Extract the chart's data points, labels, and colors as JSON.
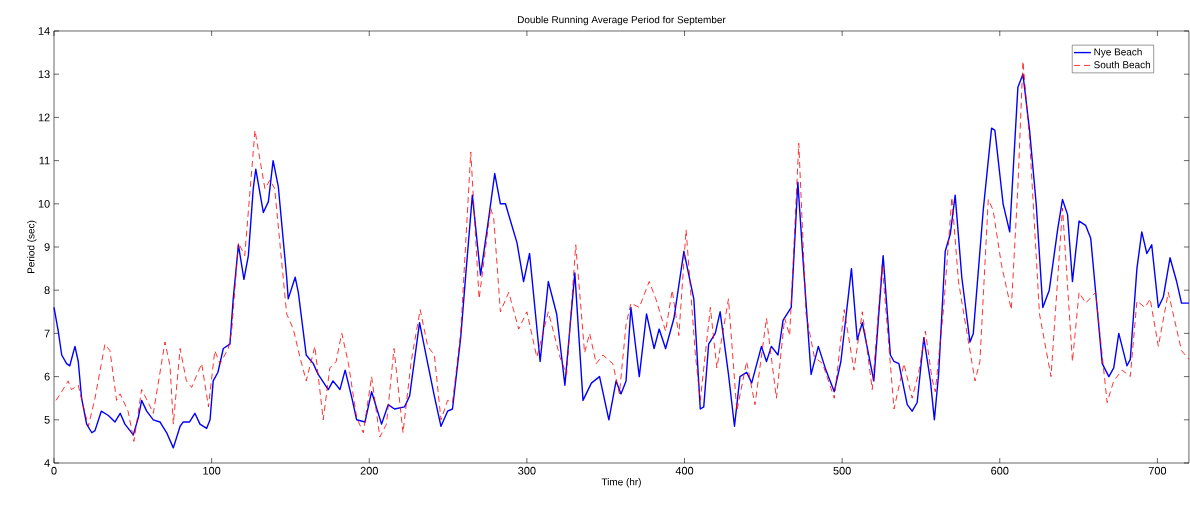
{
  "chart_data": {
    "type": "line",
    "title": "Double Running Average Period for September",
    "xlabel": "Time (hr)",
    "ylabel": "Period (sec)",
    "xlim": [
      0,
      720
    ],
    "ylim": [
      4,
      14
    ],
    "xticks": [
      0,
      100,
      200,
      300,
      400,
      500,
      600,
      700
    ],
    "yticks": [
      4,
      5,
      6,
      7,
      8,
      9,
      10,
      11,
      12,
      13,
      14
    ],
    "legend": "top right",
    "series": [
      {
        "name": "Nye Beach",
        "color": "#0000ff",
        "line_style": "solid",
        "x": [
          0,
          2.7,
          4.9,
          8,
          10,
          13.3,
          15.4,
          17.5,
          20.7,
          24,
          26,
          30,
          34.5,
          38.7,
          42,
          45,
          50.3,
          53.5,
          55.6,
          58.8,
          63,
          67.2,
          71.5,
          75.7,
          80,
          82,
          86,
          89.4,
          92.6,
          96.8,
          99,
          101,
          104,
          107.4,
          111.6,
          113.7,
          117,
          120.5,
          123.3,
          126.4,
          128,
          132.8,
          136,
          139,
          142.3,
          147.6,
          148.6,
          153,
          155,
          160,
          164.5,
          167.6,
          174,
          177,
          181.4,
          184.7,
          189,
          192,
          197.3,
          201.5,
          207.8,
          212,
          216,
          222.4,
          225.6,
          231.9,
          237.1,
          241.3,
          245.5,
          249.7,
          252.8,
          258,
          261.2,
          265.4,
          270.6,
          275.9,
          279.6,
          283.2,
          286.4,
          293.7,
          297.9,
          301.7,
          308.4,
          313.6,
          318.9,
          324.1,
          330.4,
          335.6,
          340.9,
          346.1,
          352,
          356.6,
          359.7,
          362.9,
          366,
          371.3,
          375.9,
          380.7,
          383.9,
          388,
          393.3,
          399.6,
          405.9,
          410,
          412.2,
          415.3,
          419.5,
          422.6,
          427.9,
          431.7,
          435.2,
          439.4,
          442.6,
          448.8,
          452,
          455.1,
          459.3,
          462.5,
          467.7,
          471.9,
          475,
          480.3,
          484.9,
          489.7,
          495,
          499.2,
          505.9,
          509.6,
          512.8,
          520.1,
          526,
          530.6,
          532.9,
          536,
          541.3,
          544.4,
          547.6,
          551.8,
          556,
          558.5,
          561.2,
          565.4,
          568.6,
          571.7,
          575.9,
          581.1,
          583.2,
          589.5,
          594.8,
          596.9,
          602.1,
          606.3,
          611.5,
          614.7,
          618.9,
          623.1,
          627.3,
          631.4,
          636.7,
          639.8,
          643,
          646.1,
          650.3,
          654.5,
          657.7,
          665,
          669.2,
          672.3,
          675.5,
          680.7,
          682.8,
          687,
          690.1,
          693.3,
          696.4,
          700.6,
          703.8,
          708,
          712.2,
          715.3,
          720
        ],
        "values": [
          7.6,
          7.05,
          6.5,
          6.3,
          6.25,
          6.7,
          6.35,
          5.5,
          4.9,
          4.7,
          4.75,
          5.2,
          5.1,
          4.95,
          5.15,
          4.9,
          4.65,
          5.05,
          5.45,
          5.2,
          5.0,
          4.95,
          4.7,
          4.35,
          4.85,
          4.95,
          4.95,
          5.15,
          4.9,
          4.8,
          5.0,
          5.9,
          6.1,
          6.65,
          6.75,
          7.8,
          9.05,
          8.25,
          8.8,
          10.35,
          10.8,
          9.8,
          10.05,
          11.0,
          10.4,
          8.3,
          7.8,
          8.3,
          7.95,
          6.5,
          6.3,
          6.05,
          5.7,
          5.9,
          5.7,
          6.15,
          5.5,
          5.0,
          4.95,
          5.65,
          4.9,
          5.35,
          5.25,
          5.3,
          5.55,
          7.25,
          6.3,
          5.55,
          4.85,
          5.2,
          5.25,
          6.9,
          8.35,
          10.2,
          8.35,
          9.7,
          10.7,
          10.0,
          10.0,
          9.1,
          8.2,
          8.85,
          6.35,
          8.2,
          7.45,
          5.8,
          8.4,
          5.45,
          5.85,
          6.0,
          5.0,
          5.9,
          5.6,
          5.9,
          7.6,
          6.0,
          7.45,
          6.65,
          7.1,
          6.65,
          7.35,
          8.9,
          7.8,
          5.25,
          5.3,
          6.75,
          7.0,
          7.5,
          6.05,
          4.85,
          6.0,
          6.1,
          5.85,
          6.7,
          6.35,
          6.7,
          6.5,
          7.3,
          7.6,
          10.5,
          8.8,
          6.05,
          6.7,
          6.15,
          5.65,
          6.35,
          8.5,
          6.85,
          7.25,
          5.9,
          8.8,
          6.5,
          6.35,
          6.3,
          5.35,
          5.2,
          5.4,
          6.9,
          5.9,
          5.0,
          6.05,
          8.9,
          9.3,
          10.2,
          8.3,
          6.8,
          7.0,
          9.85,
          11.75,
          11.7,
          10.0,
          9.35,
          12.7,
          13.0,
          11.7,
          10.0,
          7.6,
          8.0,
          9.4,
          10.1,
          9.75,
          8.2,
          9.6,
          9.5,
          9.2,
          6.3,
          6.0,
          6.2,
          7.0,
          6.25,
          6.4,
          8.5,
          9.35,
          8.85,
          9.05,
          7.6,
          7.85,
          8.75,
          8.2,
          7.7,
          7.7
        ]
      },
      {
        "name": "South Beach",
        "color": "#ff0000",
        "line_style": "dashed",
        "x": [
          1.3,
          4,
          9,
          11,
          15.4,
          19.7,
          21.8,
          26,
          32.3,
          35.5,
          39.7,
          41.9,
          47,
          50.7,
          55.6,
          59.8,
          63,
          70.4,
          73.6,
          75.7,
          80,
          84,
          87.3,
          93.7,
          98,
          102,
          105.3,
          110.6,
          112.7,
          117,
          121,
          127.5,
          133.8,
          137,
          140,
          147.6,
          151.8,
          156,
          160,
          165.5,
          170.8,
          175,
          179,
          181.4,
          182.6,
          186.8,
          192,
          196.2,
          201.5,
          206.7,
          210.9,
          215.7,
          221.4,
          226.6,
          232.3,
          237.1,
          241.3,
          245.5,
          249.7,
          252.8,
          258,
          261.2,
          264.4,
          269.7,
          277,
          279,
          283.2,
          288.5,
          294.8,
          300,
          306.3,
          313.6,
          321,
          325.2,
          331,
          336.6,
          339.8,
          344,
          348.2,
          354.5,
          358.7,
          362.9,
          366,
          371.3,
          377.6,
          381.8,
          388,
          392.2,
          396.4,
          401,
          406.9,
          410,
          416.4,
          420.5,
          427.9,
          433.2,
          439.4,
          444.7,
          452,
          458.3,
          463.5,
          466.7,
          472.5,
          477.1,
          482.4,
          487.6,
          495,
          501.3,
          507.5,
          512.8,
          519.1,
          525.4,
          532.9,
          539.2,
          544.4,
          548.6,
          552.8,
          557,
          559.1,
          564.4,
          569.6,
          573.8,
          579,
          584.3,
          587.4,
          592.7,
          595.8,
          601,
          607.3,
          611.5,
          614.7,
          618.9,
          625.2,
          632.5,
          639.8,
          646.1,
          650.3,
          654.5,
          660.8,
          668.1,
          672.3,
          677.6,
          682.8,
          687,
          692.2,
          695.4,
          700.6,
          706.9,
          712.2,
          715.3,
          720
        ],
        "values": [
          5.45,
          5.6,
          5.9,
          5.7,
          5.8,
          5.15,
          4.85,
          5.5,
          6.75,
          6.6,
          5.45,
          5.6,
          5.2,
          4.5,
          5.7,
          5.4,
          5.15,
          6.8,
          6.25,
          4.9,
          6.65,
          5.9,
          5.75,
          6.3,
          5.3,
          6.6,
          6.3,
          6.65,
          7.05,
          9.1,
          8.8,
          11.7,
          10.35,
          10.55,
          10.35,
          7.45,
          7.1,
          6.45,
          5.9,
          6.7,
          5.0,
          6.2,
          6.35,
          6.8,
          7.0,
          6.3,
          5.05,
          4.7,
          6.0,
          4.6,
          4.9,
          6.65,
          4.7,
          6.35,
          7.55,
          6.7,
          6.5,
          5.0,
          5.45,
          5.4,
          7.0,
          9.1,
          11.2,
          7.8,
          9.9,
          9.65,
          7.5,
          7.95,
          7.1,
          7.5,
          6.45,
          7.5,
          6.45,
          6.05,
          9.05,
          6.55,
          7.0,
          6.3,
          6.5,
          6.3,
          5.6,
          7.2,
          7.7,
          7.6,
          8.2,
          7.8,
          7.05,
          8.0,
          6.95,
          9.4,
          6.5,
          5.45,
          7.6,
          6.2,
          7.8,
          5.2,
          6.35,
          5.35,
          7.35,
          5.5,
          7.35,
          6.95,
          11.4,
          7.45,
          6.45,
          6.3,
          5.5,
          7.55,
          6.15,
          7.5,
          5.7,
          8.6,
          5.25,
          6.3,
          5.5,
          6.1,
          7.05,
          5.95,
          5.65,
          7.6,
          10.15,
          8.2,
          7.05,
          5.9,
          6.35,
          10.1,
          9.85,
          8.6,
          7.55,
          10.4,
          13.3,
          11.5,
          7.45,
          6.0,
          9.9,
          6.35,
          7.95,
          7.7,
          7.95,
          5.4,
          5.9,
          6.15,
          6.0,
          7.75,
          7.6,
          7.8,
          6.7,
          7.95,
          7.1,
          6.6,
          6.4
        ]
      }
    ]
  }
}
